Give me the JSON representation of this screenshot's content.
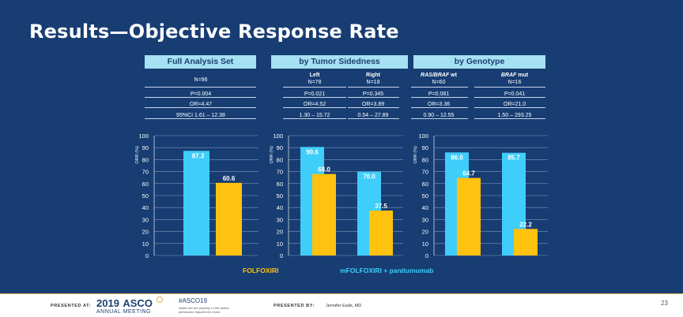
{
  "slide": {
    "title": "Results—Objective Response Rate",
    "page_number": "23"
  },
  "table": {
    "headers": [
      "Full Analysis Set",
      "by Tumor Sidedness",
      "by Genotype"
    ],
    "groups": [
      {
        "label": "",
        "label_bold": "",
        "n": "N=96",
        "p": "P=0.004",
        "or": "OR=4.47",
        "ci": "95%CI 1.61 – 12.38"
      },
      {
        "label": "Left",
        "label_bold": "",
        "n": "N=78",
        "p": "P=0.021",
        "or": "OR=4.52",
        "ci": "1.30 – 15.72"
      },
      {
        "label": "Right",
        "label_bold": "",
        "n": "N=18",
        "p": "P=0.345",
        "or": "OR=3.89",
        "ci": "0.54 – 27.89"
      },
      {
        "label": " wt",
        "label_bold": "RAS/BRAF",
        "n": "N=60",
        "p": "P=0.081",
        "or": "OR=3.36",
        "ci": "0.90 – 12.55"
      },
      {
        "label": " mut",
        "label_bold": "BRAF",
        "n": "N=16",
        "p": "P=0.041",
        "or": "OR=21.0",
        "ci": "1.50 – 293.25"
      }
    ]
  },
  "chart_data": [
    {
      "type": "bar",
      "title": "Full Analysis Set",
      "ylabel": "ORR (%)",
      "ylim": [
        0,
        100
      ],
      "yticks": [
        0,
        10,
        20,
        30,
        40,
        50,
        60,
        70,
        80,
        90,
        100
      ],
      "categories": [
        "Full Analysis Set"
      ],
      "series": [
        {
          "name": "mFOLFOXIRI + panitumumab",
          "values": [
            87.3
          ]
        },
        {
          "name": "FOLFOXIRI",
          "values": [
            60.6
          ]
        }
      ]
    },
    {
      "type": "bar",
      "title": "by Tumor Sidedness",
      "ylabel": "ORR (%)",
      "ylim": [
        0,
        100
      ],
      "yticks": [
        0,
        10,
        20,
        30,
        40,
        50,
        60,
        70,
        80,
        90,
        100
      ],
      "categories": [
        "Left",
        "Right"
      ],
      "series": [
        {
          "name": "mFOLFOXIRI + panitumumab",
          "values": [
            90.6,
            70.0
          ]
        },
        {
          "name": "FOLFOXIRI",
          "values": [
            68.0,
            37.5
          ]
        }
      ]
    },
    {
      "type": "bar",
      "title": "by Genotype",
      "ylabel": "ORR (%)",
      "ylim": [
        0,
        100
      ],
      "yticks": [
        0,
        10,
        20,
        30,
        40,
        50,
        60,
        70,
        80,
        90,
        100
      ],
      "categories": [
        "RAS/BRAF wt",
        "BRAF mut"
      ],
      "series": [
        {
          "name": "mFOLFOXIRI + panitumumab",
          "values": [
            86.0,
            85.7
          ]
        },
        {
          "name": "FOLFOXIRI",
          "values": [
            64.7,
            22.2
          ]
        }
      ]
    }
  ],
  "legend": {
    "folfoxiri": "FOLFOXIRI",
    "mfolfoxiri": "mFOLFOXIRI + panitumumab"
  },
  "colors": {
    "blue_bar": "#3fcdfa",
    "gold_bar": "#ffc20e",
    "background": "#173d73",
    "header_fill": "#a6e0f3"
  },
  "footer": {
    "presented_at": "PRESENTED AT:",
    "meeting_year": "2019",
    "meeting_name": "ASCO",
    "meeting_sub": "ANNUAL MEETING",
    "hashtag": "#ASCO19",
    "disclaimer_1": "Slides are the property of the author,",
    "disclaimer_2": "permission required for reuse.",
    "presented_by_label": "PRESENTED BY:",
    "presenter": "Jennifer Eads, MD"
  }
}
